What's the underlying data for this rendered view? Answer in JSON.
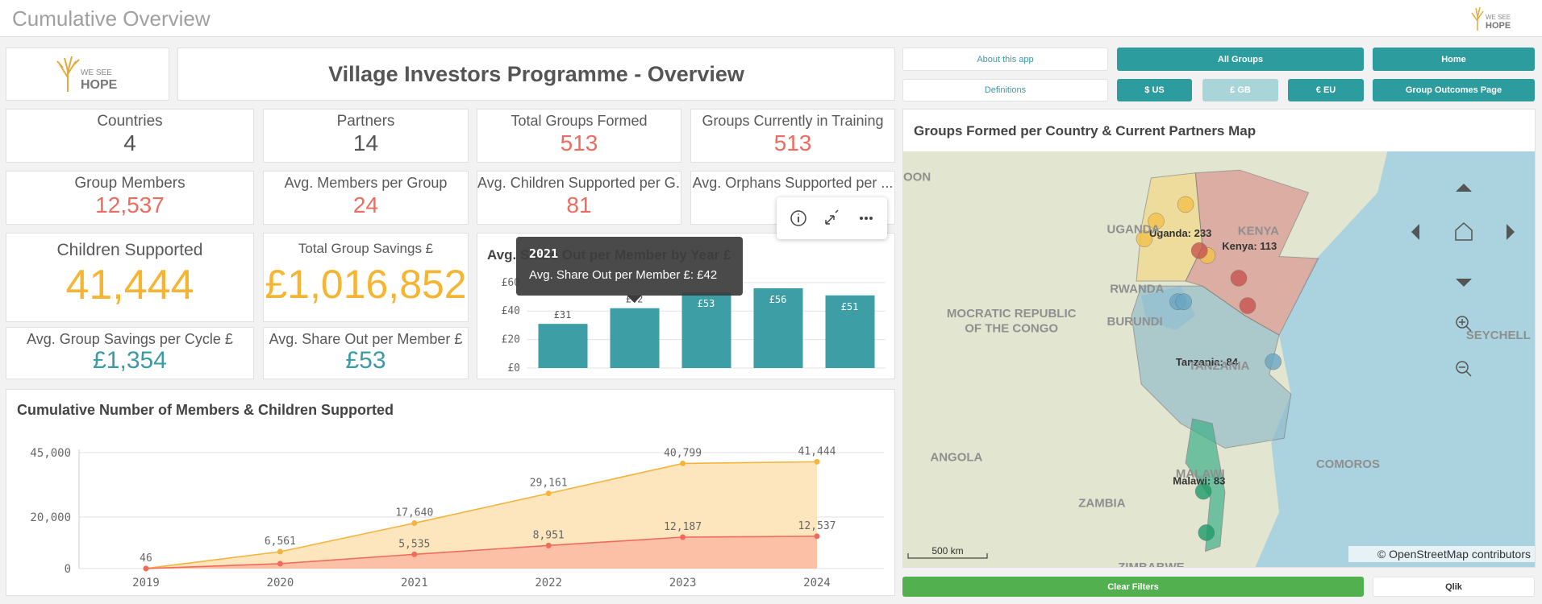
{
  "header": {
    "title": "Cumulative Overview",
    "logo": [
      "WE SEE",
      "HOPE"
    ]
  },
  "logo": [
    "WE SEE",
    "HOPE"
  ],
  "title": "Village Investors Programme - Overview",
  "kpis": [
    {
      "label": "Countries",
      "value": "4"
    },
    {
      "label": "Partners",
      "value": "14"
    },
    {
      "label": "Total Groups Formed",
      "value": "513"
    },
    {
      "label": "Groups Currently in Training",
      "value": "513"
    },
    {
      "label": "Group Members",
      "value": "12,537"
    },
    {
      "label": "Avg. Members per Group",
      "value": "24"
    },
    {
      "label": "Avg. Children Supported per G...",
      "value": "81"
    },
    {
      "label": "Avg. Orphans Supported per ..."
    },
    {
      "label": "Children Supported",
      "value": "41,444"
    },
    {
      "label": "Total Group Savings £",
      "value": "£1,016,852"
    },
    {
      "label": "Avg. Group Savings per Cycle £",
      "value": "£1,354"
    },
    {
      "label": "Avg. Share Out per Member £",
      "value": "£53"
    }
  ],
  "buttons": [
    "About this app",
    "All Groups",
    "Home",
    "Definitions",
    "$ US",
    "£ GB",
    "€ EU",
    "Group Outcomes Page",
    "Clear Filters",
    "Qlik"
  ],
  "chart_data": [
    {
      "type": "bar",
      "title": "Avg. Share Out per Member by Year £",
      "categories": [
        null,
        "2021",
        null,
        null,
        null
      ],
      "values": [
        31,
        42,
        53,
        56,
        51
      ],
      "value_labels": [
        "£31",
        "£42",
        "£53",
        "£56",
        "£51"
      ],
      "color": "#3d9ea6",
      "ylim": [
        0,
        65
      ],
      "yticks": [
        {
          "value": 0,
          "label": "£0"
        },
        {
          "value": 20,
          "label": "£20"
        },
        {
          "value": 40,
          "label": "£40"
        },
        {
          "value": 60,
          "label": "£60"
        }
      ],
      "grid": true,
      "tooltip": {
        "title": "2021",
        "text": "Avg. Share Out per Member £: £42"
      }
    },
    {
      "type": "area",
      "title": "Cumulative Number of Members & Children Supported",
      "categories": [
        "2019",
        "2020",
        "2021",
        "2022",
        "2023",
        "2024"
      ],
      "series": [
        {
          "color": "#f5b53d",
          "fill": "#fde3b6",
          "values": [
            46,
            6561,
            17640,
            29161,
            40799,
            41444
          ],
          "value_labels": [
            "46",
            "6,561",
            "17,640",
            "29,161",
            "40,799",
            "41,444"
          ]
        },
        {
          "color": "#f16b5c",
          "fill": "#fbbba2",
          "values": [
            15,
            1900,
            5535,
            8951,
            12187,
            12537
          ],
          "value_labels": [
            null,
            null,
            "5,535",
            "8,951",
            "12,187",
            "12,537"
          ]
        }
      ],
      "ylim": [
        0,
        45000
      ],
      "yticks": [
        0,
        {
          "value": 20000,
          "label": "20,000"
        },
        {
          "value": 45000,
          "label": "45,000"
        }
      ],
      "grid": true
    }
  ],
  "map": {
    "title": "Groups Formed per Country & Current Partners Map",
    "labels": [
      "Uganda: 233",
      "Kenya: 113",
      "Tanzania: 84",
      "Malawi: 83"
    ],
    "places": [
      "OON",
      "UGANDA",
      "KENYA",
      "RWANDA",
      "BURUNDI",
      "MOCRATIC REPUBLIC",
      "OF THE CONGO",
      "TANZANIA",
      "ANGOLA",
      "ZAMBIA",
      "MALAWI",
      "COMOROS",
      "SEYCHELL",
      "ZIMBABWE"
    ],
    "scale": "500 km",
    "attribution": "© OpenStreetMap contributors"
  }
}
